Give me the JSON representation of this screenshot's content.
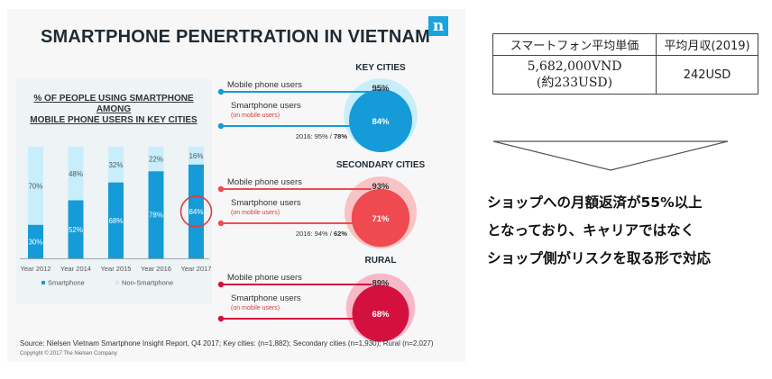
{
  "infographic": {
    "title": "SMARTPHONE PENERTRATION IN VIETNAM",
    "logo_letter": "n",
    "source": "Source: Nielsen Vietnam Smartphone Insight Report, Q4 2017; Key cities: (n=1,882); Secondary cities (n=1,930); Rural (n=2,027)",
    "copyright": "Copyright © 2017 The Nielsen Company",
    "colors": {
      "smartphone": "#159bd7",
      "non_smartphone": "#c9eefb",
      "key_cities": "#159bd7",
      "secondary": "#ee4a4f",
      "rural": "#d4103f"
    }
  },
  "chart_data": [
    {
      "type": "bar",
      "title_lines": [
        "% OF PEOPLE USING SMARTPHONE",
        "AMONG",
        "MOBILE PHONE USERS IN KEY CITIES"
      ],
      "categories": [
        "Year 2012",
        "Year 2014",
        "Year 2015",
        "Year 2016",
        "Year 2017"
      ],
      "series": [
        {
          "name": "Smartphone",
          "values": [
            30,
            52,
            68,
            78,
            84
          ]
        },
        {
          "name": "Non-Smartphone",
          "values": [
            70,
            48,
            32,
            22,
            16
          ]
        }
      ],
      "stacked": true,
      "ylim": [
        0,
        100
      ],
      "highlight_index": 4,
      "legend_position": "bottom"
    },
    {
      "type": "bubble",
      "segments": [
        {
          "name": "KEY CITIES",
          "mobile_label": "Mobile phone users",
          "smart_label": "Smartphone users",
          "smart_sublabel": "(on mobile users)",
          "mobile_pct": 95,
          "smart_pct": 84,
          "mobile_text": "95%",
          "smart_text": "84%",
          "note_prefix": "2016: 95% / ",
          "note_value": "78%"
        },
        {
          "name": "SECONDARY CITIES",
          "mobile_label": "Mobile phone users",
          "smart_label": "Smartphone users",
          "smart_sublabel": "(on mobile users)",
          "mobile_pct": 93,
          "smart_pct": 71,
          "mobile_text": "93%",
          "smart_text": "71%",
          "note_prefix": "2016: 94% / ",
          "note_value": "62%"
        },
        {
          "name": "RURAL",
          "mobile_label": "Mobile phone users",
          "smart_label": "Smartphone users",
          "smart_sublabel": "(on mobile users)",
          "mobile_pct": 89,
          "smart_pct": 68,
          "mobile_text": "89%",
          "smart_text": "68%",
          "note_prefix": "",
          "note_value": ""
        }
      ]
    }
  ],
  "info_table": {
    "header_price": "スマートフォン平均単価",
    "header_income": "平均月収(2019)",
    "price_line1": "5,682,000VND",
    "price_line2": "(約233USD)",
    "income": "242USD"
  },
  "note": {
    "line1": "ショップへの月額返済が55%以上",
    "line2": "となっており、キャリアではなく",
    "line3": "ショップ側がリスクを取る形で対応"
  }
}
